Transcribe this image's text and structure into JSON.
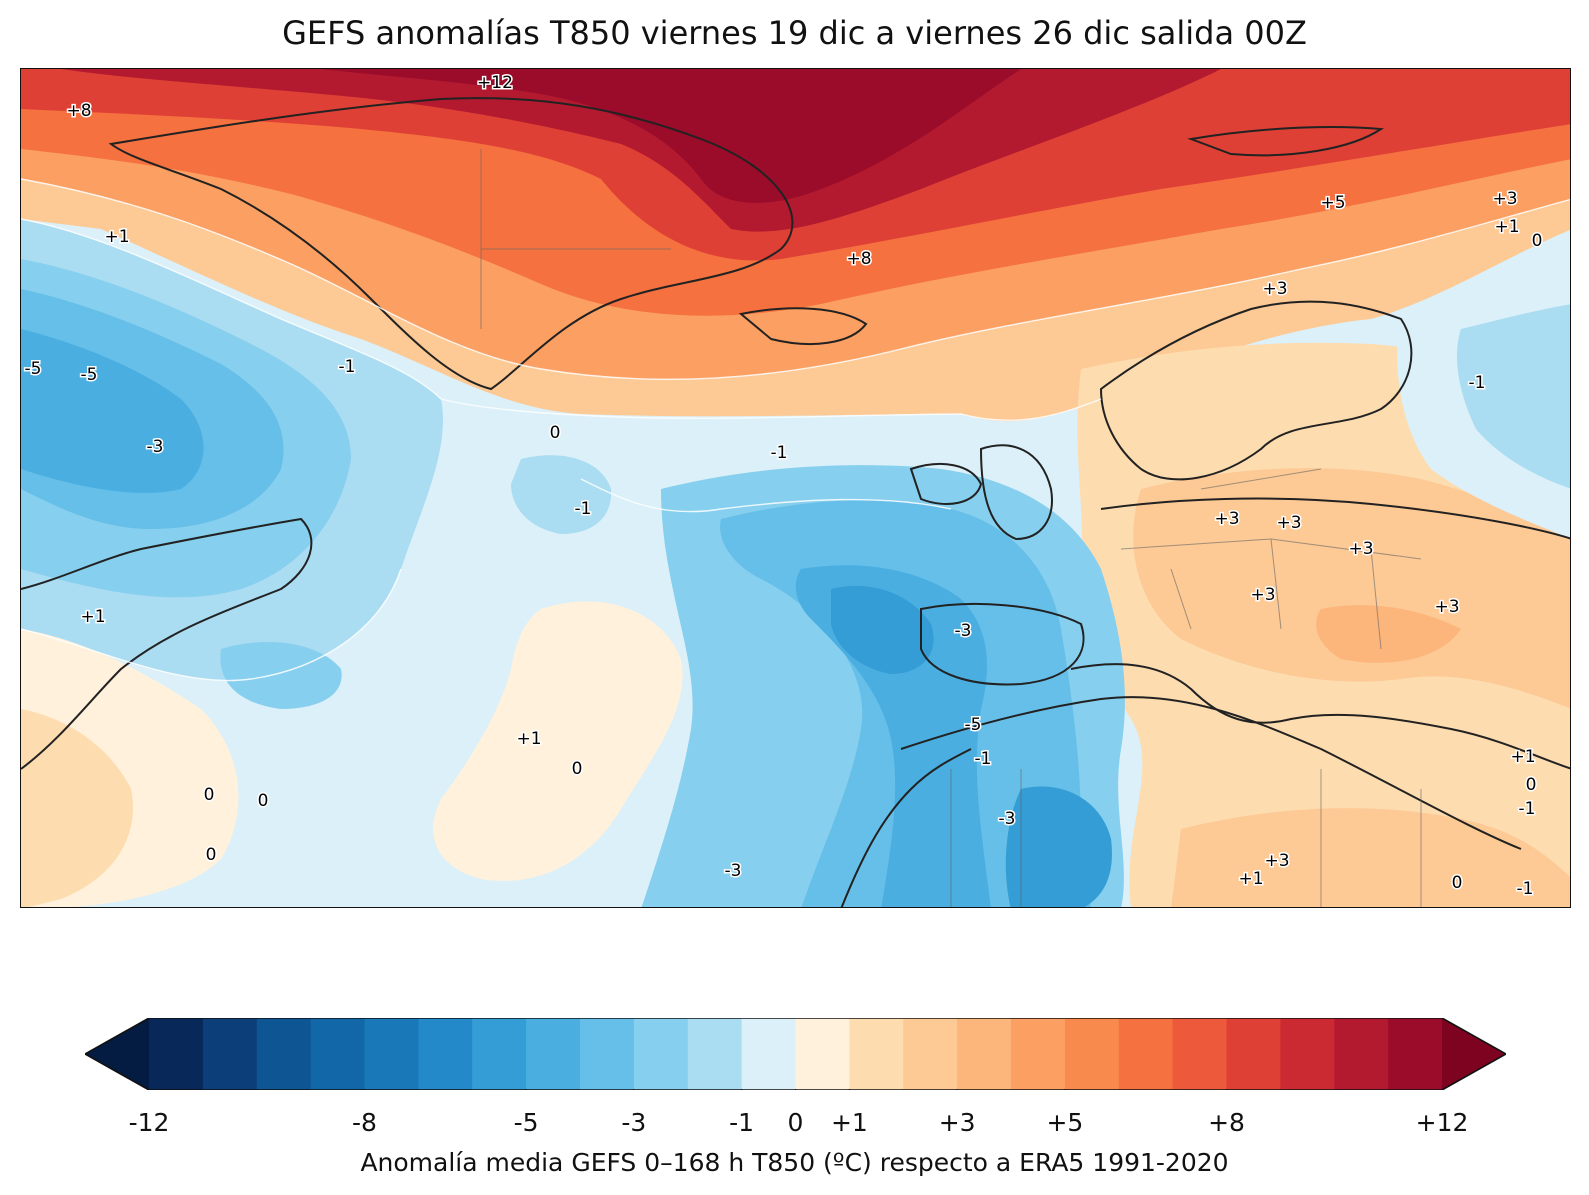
{
  "title": "GEFS anomalías T850 viernes 19 dic a viernes 26 dic salida 00Z",
  "colorbar": {
    "label": "Anomalía media GEFS 0–168 h T850 (ºC) respecto a ERA5 1991-2020",
    "boundaries": [
      -12,
      -11,
      -10,
      -9,
      -8,
      -7,
      -6,
      -5,
      -4,
      -3,
      -2,
      -1,
      0,
      1,
      2,
      3,
      4,
      5,
      6,
      7,
      8,
      9,
      10,
      11,
      12
    ],
    "tick_values": [
      -12,
      -8,
      -5,
      -3,
      -1,
      0,
      1,
      3,
      5,
      8,
      12
    ],
    "tick_labels": [
      "-12",
      "-8",
      "-5",
      "-3",
      "-1",
      "0",
      "+1",
      "+3",
      "+5",
      "+8",
      "+12"
    ],
    "colors": [
      "#08285a",
      "#0c3f7a",
      "#0e5594",
      "#1167a8",
      "#1978b8",
      "#2389c8",
      "#349dd6",
      "#4aaee0",
      "#66bfe8",
      "#86cfee",
      "#aadcf2",
      "#dbf0f8",
      "#fff1dc",
      "#fddcb0",
      "#fdc994",
      "#fcb57a",
      "#fba062",
      "#f98a4e",
      "#f5713f",
      "#ec5a3b",
      "#df4035",
      "#cc2a33",
      "#b31a2f",
      "#9a0c2a"
    ],
    "under_color": "#051c42",
    "over_color": "#7d0320"
  },
  "contour_labels": [
    {
      "text": "+12"
    },
    {
      "text": "+8"
    },
    {
      "text": "+1"
    },
    {
      "text": "-5"
    },
    {
      "text": "-5"
    },
    {
      "text": "-1"
    },
    {
      "text": "-3"
    },
    {
      "text": "0"
    },
    {
      "text": "-1"
    },
    {
      "text": "-1"
    },
    {
      "text": "+8"
    },
    {
      "text": "+5"
    },
    {
      "text": "+3"
    },
    {
      "text": "+1"
    },
    {
      "text": "0"
    },
    {
      "text": "+3"
    },
    {
      "text": "-1"
    },
    {
      "text": "+3"
    },
    {
      "text": "+3"
    },
    {
      "text": "+3"
    },
    {
      "text": "+3"
    },
    {
      "text": "+3"
    },
    {
      "text": "-3"
    },
    {
      "text": "+1"
    },
    {
      "text": "+1"
    },
    {
      "text": "0"
    },
    {
      "text": "0"
    },
    {
      "text": "0"
    },
    {
      "text": "0"
    },
    {
      "text": "-5"
    },
    {
      "text": "-1"
    },
    {
      "text": "-3"
    },
    {
      "text": "-3"
    },
    {
      "text": "+1"
    },
    {
      "text": "+3"
    },
    {
      "text": "+1"
    },
    {
      "text": "0"
    },
    {
      "text": "-1"
    },
    {
      "text": "0"
    },
    {
      "text": "-1"
    }
  ]
}
